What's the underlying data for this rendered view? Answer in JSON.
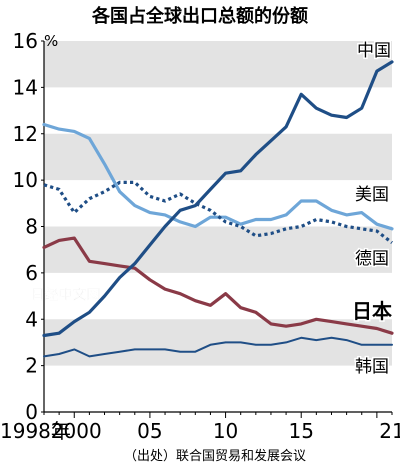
{
  "chart_data": {
    "type": "line",
    "title": "各国占全球出口总额的份额",
    "unit": "%",
    "source": "（出处）联合国贸易和发展会议",
    "watermark": "日经中文网",
    "ylim": [
      0,
      16
    ],
    "y_ticks": [
      0,
      2,
      4,
      6,
      8,
      10,
      12,
      14,
      16
    ],
    "xlim": [
      1998,
      2021
    ],
    "x_ticks": [
      {
        "year": 1998,
        "label": "1998年"
      },
      {
        "year": 2000,
        "label": "2000"
      },
      {
        "year": 2005,
        "label": "05"
      },
      {
        "year": 2010,
        "label": "10"
      },
      {
        "year": 2015,
        "label": "15"
      },
      {
        "year": 2021,
        "label": "21"
      }
    ],
    "grid": "alternating horizontal bands",
    "x": [
      1998,
      1999,
      2000,
      2001,
      2002,
      2003,
      2004,
      2005,
      2006,
      2007,
      2008,
      2009,
      2010,
      2011,
      2012,
      2013,
      2014,
      2015,
      2016,
      2017,
      2018,
      2019,
      2020,
      2021
    ],
    "series": [
      {
        "name": "中国",
        "color": "#1f4e86",
        "dash": "solid",
        "values": [
          3.3,
          3.4,
          3.9,
          4.3,
          5.0,
          5.8,
          6.4,
          7.2,
          8.0,
          8.7,
          8.9,
          9.6,
          10.3,
          10.4,
          11.1,
          11.7,
          12.3,
          13.7,
          13.1,
          12.8,
          12.7,
          13.1,
          14.7,
          15.1
        ]
      },
      {
        "name": "美国",
        "color": "#6ea6d8",
        "dash": "solid",
        "values": [
          12.4,
          12.2,
          12.1,
          11.8,
          10.7,
          9.5,
          8.9,
          8.6,
          8.5,
          8.2,
          8.0,
          8.4,
          8.4,
          8.1,
          8.3,
          8.3,
          8.5,
          9.1,
          9.1,
          8.7,
          8.5,
          8.6,
          8.1,
          7.9
        ]
      },
      {
        "name": "德国",
        "color": "#1f4e86",
        "dash": "dotted",
        "values": [
          9.8,
          9.6,
          8.6,
          9.2,
          9.5,
          9.9,
          9.9,
          9.3,
          9.1,
          9.4,
          9.0,
          8.7,
          8.2,
          8.0,
          7.6,
          7.7,
          7.9,
          8.0,
          8.3,
          8.2,
          8.0,
          7.9,
          7.8,
          7.3
        ]
      },
      {
        "name": "日本",
        "color": "#8a3a47",
        "dash": "solid",
        "values": [
          7.1,
          7.4,
          7.5,
          6.5,
          6.4,
          6.3,
          6.2,
          5.7,
          5.3,
          5.1,
          4.8,
          4.6,
          5.1,
          4.5,
          4.3,
          3.8,
          3.7,
          3.8,
          4.0,
          3.9,
          3.8,
          3.7,
          3.6,
          3.4
        ]
      },
      {
        "name": "韩国",
        "color": "#1f4e86",
        "dash": "solid",
        "values": [
          2.4,
          2.5,
          2.7,
          2.4,
          2.5,
          2.6,
          2.7,
          2.7,
          2.7,
          2.6,
          2.6,
          2.9,
          3.0,
          3.0,
          2.9,
          2.9,
          3.0,
          3.2,
          3.1,
          3.2,
          3.1,
          2.9,
          2.9,
          2.9
        ]
      }
    ]
  }
}
